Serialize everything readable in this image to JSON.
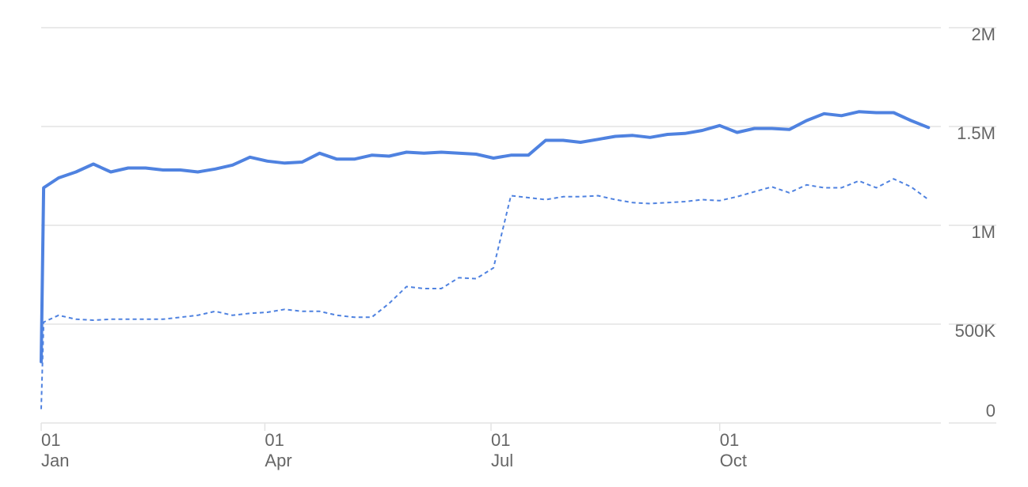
{
  "chart_data": {
    "type": "line",
    "x_axis_type": "date",
    "y_axis_side": "right",
    "grid": true,
    "legend": "none",
    "ylim": [
      0,
      2000000
    ],
    "yticks": [
      {
        "value": 0,
        "label": "0"
      },
      {
        "value": 500000,
        "label": "500K"
      },
      {
        "value": 1000000,
        "label": "1M"
      },
      {
        "value": 1500000,
        "label": "1.5M"
      },
      {
        "value": 2000000,
        "label": "2M"
      }
    ],
    "xticks": [
      {
        "date": "2019-01-01",
        "day": "01",
        "month": "Jan"
      },
      {
        "date": "2019-04-01",
        "day": "01",
        "month": "Apr"
      },
      {
        "date": "2019-07-01",
        "day": "01",
        "month": "Jul"
      },
      {
        "date": "2019-10-01",
        "day": "01",
        "month": "Oct"
      }
    ],
    "xlim": [
      "2019-01-01",
      "2019-12-29"
    ],
    "series": [
      {
        "style": "solid",
        "color": "#4f82e0",
        "points": [
          [
            "2019-01-01",
            310000
          ],
          [
            "2019-01-02",
            1190000
          ],
          [
            "2019-01-08",
            1240000
          ],
          [
            "2019-01-15",
            1270000
          ],
          [
            "2019-01-22",
            1310000
          ],
          [
            "2019-01-29",
            1270000
          ],
          [
            "2019-02-05",
            1290000
          ],
          [
            "2019-02-12",
            1290000
          ],
          [
            "2019-02-19",
            1280000
          ],
          [
            "2019-02-26",
            1280000
          ],
          [
            "2019-03-05",
            1270000
          ],
          [
            "2019-03-12",
            1285000
          ],
          [
            "2019-03-19",
            1305000
          ],
          [
            "2019-03-26",
            1345000
          ],
          [
            "2019-04-02",
            1325000
          ],
          [
            "2019-04-09",
            1315000
          ],
          [
            "2019-04-16",
            1320000
          ],
          [
            "2019-04-23",
            1365000
          ],
          [
            "2019-04-30",
            1335000
          ],
          [
            "2019-05-07",
            1335000
          ],
          [
            "2019-05-14",
            1355000
          ],
          [
            "2019-05-21",
            1350000
          ],
          [
            "2019-05-28",
            1370000
          ],
          [
            "2019-06-04",
            1365000
          ],
          [
            "2019-06-11",
            1370000
          ],
          [
            "2019-06-18",
            1365000
          ],
          [
            "2019-06-25",
            1360000
          ],
          [
            "2019-07-02",
            1340000
          ],
          [
            "2019-07-09",
            1355000
          ],
          [
            "2019-07-16",
            1355000
          ],
          [
            "2019-07-23",
            1430000
          ],
          [
            "2019-07-30",
            1430000
          ],
          [
            "2019-08-06",
            1420000
          ],
          [
            "2019-08-13",
            1435000
          ],
          [
            "2019-08-20",
            1450000
          ],
          [
            "2019-08-27",
            1455000
          ],
          [
            "2019-09-03",
            1445000
          ],
          [
            "2019-09-10",
            1460000
          ],
          [
            "2019-09-17",
            1465000
          ],
          [
            "2019-09-24",
            1480000
          ],
          [
            "2019-10-01",
            1505000
          ],
          [
            "2019-10-08",
            1470000
          ],
          [
            "2019-10-15",
            1490000
          ],
          [
            "2019-10-22",
            1490000
          ],
          [
            "2019-10-29",
            1485000
          ],
          [
            "2019-11-05",
            1530000
          ],
          [
            "2019-11-12",
            1565000
          ],
          [
            "2019-11-19",
            1555000
          ],
          [
            "2019-11-26",
            1575000
          ],
          [
            "2019-12-03",
            1570000
          ],
          [
            "2019-12-10",
            1570000
          ],
          [
            "2019-12-17",
            1530000
          ],
          [
            "2019-12-24",
            1495000
          ]
        ]
      },
      {
        "style": "dashed",
        "color": "#4f82e0",
        "points": [
          [
            "2019-01-01",
            70000
          ],
          [
            "2019-01-02",
            510000
          ],
          [
            "2019-01-08",
            545000
          ],
          [
            "2019-01-15",
            525000
          ],
          [
            "2019-01-22",
            520000
          ],
          [
            "2019-01-29",
            525000
          ],
          [
            "2019-02-05",
            525000
          ],
          [
            "2019-02-12",
            525000
          ],
          [
            "2019-02-19",
            525000
          ],
          [
            "2019-02-26",
            535000
          ],
          [
            "2019-03-05",
            545000
          ],
          [
            "2019-03-12",
            565000
          ],
          [
            "2019-03-19",
            545000
          ],
          [
            "2019-03-26",
            555000
          ],
          [
            "2019-04-02",
            560000
          ],
          [
            "2019-04-09",
            575000
          ],
          [
            "2019-04-16",
            565000
          ],
          [
            "2019-04-23",
            565000
          ],
          [
            "2019-04-30",
            545000
          ],
          [
            "2019-05-07",
            535000
          ],
          [
            "2019-05-14",
            535000
          ],
          [
            "2019-05-21",
            605000
          ],
          [
            "2019-05-28",
            690000
          ],
          [
            "2019-06-04",
            680000
          ],
          [
            "2019-06-11",
            680000
          ],
          [
            "2019-06-18",
            735000
          ],
          [
            "2019-06-25",
            730000
          ],
          [
            "2019-07-02",
            785000
          ],
          [
            "2019-07-09",
            1150000
          ],
          [
            "2019-07-16",
            1140000
          ],
          [
            "2019-07-23",
            1130000
          ],
          [
            "2019-07-30",
            1145000
          ],
          [
            "2019-08-06",
            1145000
          ],
          [
            "2019-08-13",
            1150000
          ],
          [
            "2019-08-20",
            1130000
          ],
          [
            "2019-08-27",
            1115000
          ],
          [
            "2019-09-03",
            1110000
          ],
          [
            "2019-09-10",
            1115000
          ],
          [
            "2019-09-17",
            1120000
          ],
          [
            "2019-09-24",
            1130000
          ],
          [
            "2019-10-01",
            1125000
          ],
          [
            "2019-10-08",
            1145000
          ],
          [
            "2019-10-15",
            1170000
          ],
          [
            "2019-10-22",
            1195000
          ],
          [
            "2019-10-29",
            1165000
          ],
          [
            "2019-11-05",
            1205000
          ],
          [
            "2019-11-12",
            1190000
          ],
          [
            "2019-11-19",
            1190000
          ],
          [
            "2019-11-26",
            1225000
          ],
          [
            "2019-12-03",
            1190000
          ],
          [
            "2019-12-10",
            1235000
          ],
          [
            "2019-12-17",
            1195000
          ],
          [
            "2019-12-24",
            1130000
          ]
        ]
      }
    ]
  }
}
